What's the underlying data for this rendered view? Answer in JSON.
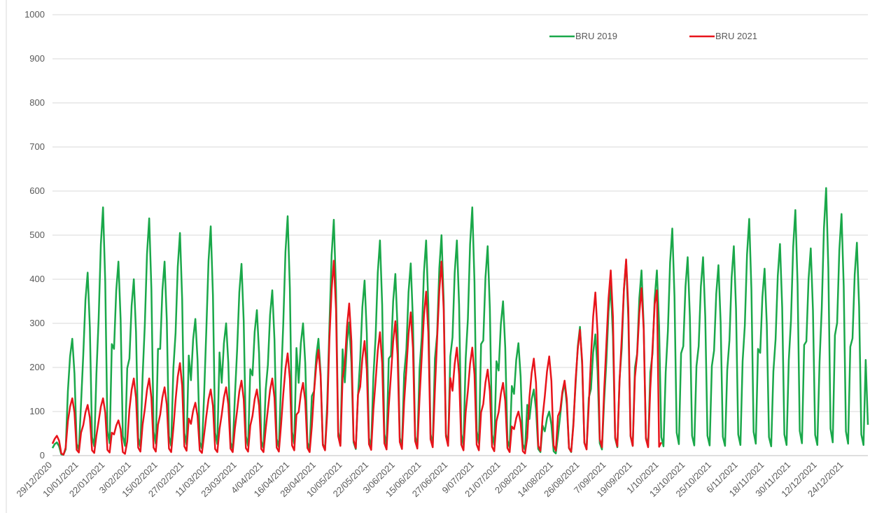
{
  "chart_data": {
    "type": "line",
    "categories": [
      "29/12/2020",
      null,
      null,
      null,
      null,
      null,
      null,
      null,
      null,
      null,
      null,
      null,
      "10/01/2021",
      null,
      null,
      null,
      null,
      null,
      null,
      null,
      null,
      null,
      null,
      null,
      "22/01/2021",
      null,
      null,
      null,
      null,
      null,
      null,
      null,
      null,
      null,
      null,
      null,
      "3/02/2021",
      null,
      null,
      null,
      null,
      null,
      null,
      null,
      null,
      null,
      null,
      null,
      "15/02/2021",
      null,
      null,
      null,
      null,
      null,
      null,
      null,
      null,
      null,
      null,
      null,
      "27/02/2021",
      null,
      null,
      null,
      null,
      null,
      null,
      null,
      null,
      null,
      null,
      null,
      "11/03/2021",
      null,
      null,
      null,
      null,
      null,
      null,
      null,
      null,
      null,
      null,
      null,
      "23/03/2021",
      null,
      null,
      null,
      null,
      null,
      null,
      null,
      null,
      null,
      null,
      null,
      "4/04/2021",
      null,
      null,
      null,
      null,
      null,
      null,
      null,
      null,
      null,
      null,
      null,
      "16/04/2021",
      null,
      null,
      null,
      null,
      null,
      null,
      null,
      null,
      null,
      null,
      null,
      "28/04/2021",
      null,
      null,
      null,
      null,
      null,
      null,
      null,
      null,
      null,
      null,
      null,
      "10/05/2021",
      null,
      null,
      null,
      null,
      null,
      null,
      null,
      null,
      null,
      null,
      null,
      "22/05/2021",
      null,
      null,
      null,
      null,
      null,
      null,
      null,
      null,
      null,
      null,
      null,
      "3/06/2021",
      null,
      null,
      null,
      null,
      null,
      null,
      null,
      null,
      null,
      null,
      null,
      "15/06/2021",
      null,
      null,
      null,
      null,
      null,
      null,
      null,
      null,
      null,
      null,
      null,
      "27/06/2021",
      null,
      null,
      null,
      null,
      null,
      null,
      null,
      null,
      null,
      null,
      null,
      "9/07/2021",
      null,
      null,
      null,
      null,
      null,
      null,
      null,
      null,
      null,
      null,
      null,
      "21/07/2021",
      null,
      null,
      null,
      null,
      null,
      null,
      null,
      null,
      null,
      null,
      null,
      "2/08/2021",
      null,
      null,
      null,
      null,
      null,
      null,
      null,
      null,
      null,
      null,
      null,
      "14/08/2021",
      null,
      null,
      null,
      null,
      null,
      null,
      null,
      null,
      null,
      null,
      null,
      "26/08/2021",
      null,
      null,
      null,
      null,
      null,
      null,
      null,
      null,
      null,
      null,
      null,
      "7/09/2021",
      null,
      null,
      null,
      null,
      null,
      null,
      null,
      null,
      null,
      null,
      null,
      "19/09/2021",
      null,
      null,
      null,
      null,
      null,
      null,
      null,
      null,
      null,
      null,
      null,
      "1/10/2021",
      null,
      null,
      null,
      null,
      null,
      null,
      null,
      null,
      null,
      null,
      null,
      "13/10/2021",
      null,
      null,
      null,
      null,
      null,
      null,
      null,
      null,
      null,
      null,
      null,
      "25/10/2021",
      null,
      null,
      null,
      null,
      null,
      null,
      null,
      null,
      null,
      null,
      null,
      "6/11/2021",
      null,
      null,
      null,
      null,
      null,
      null,
      null,
      null,
      null,
      null,
      null,
      "18/11/2021",
      null,
      null,
      null,
      null,
      null,
      null,
      null,
      null,
      null,
      null,
      null,
      "30/11/2021",
      null,
      null,
      null,
      null,
      null,
      null,
      null,
      null,
      null,
      null,
      null,
      "12/12/2021",
      null,
      null,
      null,
      null,
      null,
      null,
      null,
      null,
      null,
      null,
      null,
      "24/12/2021",
      null,
      null,
      null,
      null,
      null,
      null,
      null,
      null,
      null,
      null,
      null
    ],
    "series": [
      {
        "name": "BRU 2019",
        "color": "#1aa84a",
        "values": [
          17,
          26,
          30,
          21,
          3,
          2,
          14,
          146,
          225,
          265,
          186,
          27,
          13,
          119,
          228,
          353,
          415,
          291,
          42,
          21,
          187,
          310,
          479,
          563,
          394,
          56,
          28,
          253,
          242,
          374,
          440,
          308,
          44,
          22,
          198,
          220,
          340,
          400,
          280,
          40,
          20,
          180,
          296,
          457,
          538,
          377,
          54,
          27,
          242,
          242,
          374,
          440,
          308,
          44,
          22,
          198,
          278,
          429,
          505,
          354,
          51,
          25,
          227,
          171,
          264,
          310,
          217,
          31,
          16,
          140,
          286,
          442,
          520,
          364,
          52,
          26,
          234,
          165,
          255,
          300,
          210,
          30,
          15,
          135,
          239,
          370,
          435,
          305,
          44,
          22,
          196,
          182,
          281,
          330,
          231,
          33,
          17,
          149,
          206,
          319,
          375,
          263,
          38,
          19,
          169,
          299,
          462,
          543,
          380,
          54,
          27,
          244,
          165,
          255,
          300,
          210,
          30,
          15,
          135,
          146,
          225,
          265,
          186,
          27,
          13,
          119,
          294,
          455,
          535,
          375,
          54,
          27,
          241,
          166,
          257,
          302,
          211,
          30,
          15,
          136,
          218,
          337,
          397,
          278,
          40,
          20,
          179,
          268,
          415,
          488,
          342,
          49,
          24,
          220,
          227,
          350,
          412,
          288,
          41,
          21,
          185,
          240,
          371,
          436,
          305,
          44,
          22,
          196,
          268,
          415,
          488,
          342,
          49,
          24,
          220,
          275,
          425,
          500,
          350,
          50,
          25,
          225,
          268,
          415,
          488,
          342,
          49,
          24,
          220,
          310,
          479,
          563,
          394,
          56,
          28,
          253,
          261,
          404,
          475,
          333,
          48,
          24,
          214,
          193,
          298,
          350,
          245,
          35,
          18,
          158,
          140,
          217,
          255,
          179,
          26,
          13,
          115,
          83,
          128,
          150,
          105,
          15,
          8,
          68,
          55,
          85,
          100,
          70,
          10,
          5,
          45,
          91,
          140,
          165,
          116,
          17,
          8,
          74,
          161,
          248,
          292,
          204,
          29,
          15,
          131,
          151,
          234,
          275,
          193,
          28,
          14,
          124,
          212,
          327,
          385,
          270,
          39,
          19,
          173,
          243,
          376,
          442,
          309,
          44,
          22,
          199,
          231,
          357,
          420,
          294,
          42,
          21,
          189,
          231,
          357,
          420,
          294,
          42,
          21,
          189,
          283,
          438,
          515,
          361,
          52,
          26,
          232,
          248,
          383,
          450,
          315,
          45,
          23,
          203,
          248,
          383,
          450,
          315,
          45,
          23,
          203,
          238,
          367,
          432,
          302,
          43,
          22,
          194,
          261,
          404,
          475,
          333,
          48,
          24,
          214,
          295,
          456,
          537,
          376,
          54,
          27,
          242,
          233,
          360,
          424,
          297,
          42,
          21,
          191,
          264,
          408,
          480,
          336,
          48,
          24,
          216,
          306,
          473,
          557,
          390,
          56,
          28,
          251,
          259,
          400,
          470,
          329,
          47,
          24,
          212,
          334,
          516,
          607,
          425,
          61,
          30,
          273,
          301,
          466,
          548,
          384,
          55,
          27,
          247,
          266,
          411,
          483,
          338,
          48,
          24,
          217,
          70
        ]
      },
      {
        "name": "BRU 2021",
        "color": "#e8141b",
        "values": [
          27,
          38,
          45,
          34,
          5,
          2,
          18,
          78,
          111,
          130,
          98,
          13,
          7,
          52,
          69,
          98,
          115,
          86,
          12,
          6,
          46,
          78,
          111,
          130,
          98,
          13,
          7,
          52,
          48,
          68,
          80,
          60,
          8,
          4,
          32,
          105,
          149,
          175,
          131,
          18,
          9,
          70,
          105,
          149,
          175,
          131,
          18,
          9,
          70,
          93,
          132,
          155,
          116,
          16,
          8,
          62,
          126,
          179,
          210,
          158,
          21,
          11,
          84,
          72,
          102,
          120,
          90,
          12,
          6,
          48,
          90,
          128,
          150,
          113,
          15,
          8,
          60,
          93,
          132,
          155,
          116,
          16,
          8,
          62,
          102,
          145,
          170,
          128,
          17,
          9,
          68,
          90,
          128,
          150,
          113,
          15,
          8,
          60,
          105,
          149,
          175,
          131,
          18,
          9,
          70,
          139,
          197,
          232,
          174,
          23,
          12,
          93,
          99,
          140,
          165,
          124,
          17,
          8,
          66,
          144,
          204,
          240,
          180,
          24,
          12,
          96,
          265,
          376,
          442,
          332,
          44,
          22,
          177,
          207,
          293,
          345,
          259,
          35,
          17,
          138,
          156,
          221,
          260,
          195,
          26,
          13,
          104,
          168,
          238,
          280,
          210,
          28,
          14,
          112,
          183,
          259,
          305,
          229,
          31,
          15,
          122,
          195,
          276,
          325,
          244,
          33,
          16,
          130,
          223,
          316,
          372,
          279,
          37,
          19,
          149,
          264,
          374,
          440,
          330,
          44,
          22,
          176,
          147,
          208,
          245,
          184,
          25,
          12,
          98,
          147,
          208,
          245,
          184,
          25,
          12,
          98,
          117,
          166,
          195,
          146,
          20,
          10,
          78,
          99,
          140,
          165,
          124,
          17,
          8,
          66,
          60,
          85,
          100,
          75,
          10,
          5,
          40,
          132,
          187,
          220,
          165,
          22,
          11,
          88,
          135,
          191,
          225,
          169,
          23,
          11,
          90,
          102,
          145,
          170,
          128,
          17,
          9,
          68,
          171,
          242,
          285,
          214,
          29,
          14,
          114,
          222,
          315,
          370,
          278,
          37,
          19,
          148,
          252,
          357,
          420,
          315,
          42,
          21,
          168,
          267,
          378,
          445,
          334,
          45,
          22,
          178,
          228,
          323,
          380,
          285,
          38,
          19,
          152,
          243,
          344,
          375,
          20,
          30,
          null,
          null,
          null,
          null,
          null,
          null,
          null,
          null,
          null,
          null,
          null,
          null,
          null,
          null,
          null,
          null,
          null,
          null,
          null,
          null,
          null,
          null,
          null,
          null,
          null,
          null,
          null,
          null,
          null,
          null,
          null,
          null,
          null,
          null,
          null,
          null,
          null,
          null,
          null,
          null,
          null,
          null,
          null,
          null,
          null,
          null,
          null,
          null,
          null,
          null,
          null,
          null,
          null,
          null,
          null,
          null,
          null,
          null,
          null,
          null,
          null,
          null,
          null,
          null,
          null,
          null,
          null,
          null,
          null,
          null,
          null,
          null,
          null,
          null,
          null,
          null,
          null,
          null,
          null,
          null,
          null,
          null,
          null,
          null,
          null,
          null,
          null,
          null,
          null,
          null,
          null,
          null,
          null,
          null
        ]
      }
    ],
    "ylim": [
      0,
      1000
    ],
    "yticks": [
      0,
      100,
      200,
      300,
      400,
      500,
      600,
      700,
      800,
      900,
      1000
    ],
    "grid": true,
    "legend": "top-right"
  }
}
